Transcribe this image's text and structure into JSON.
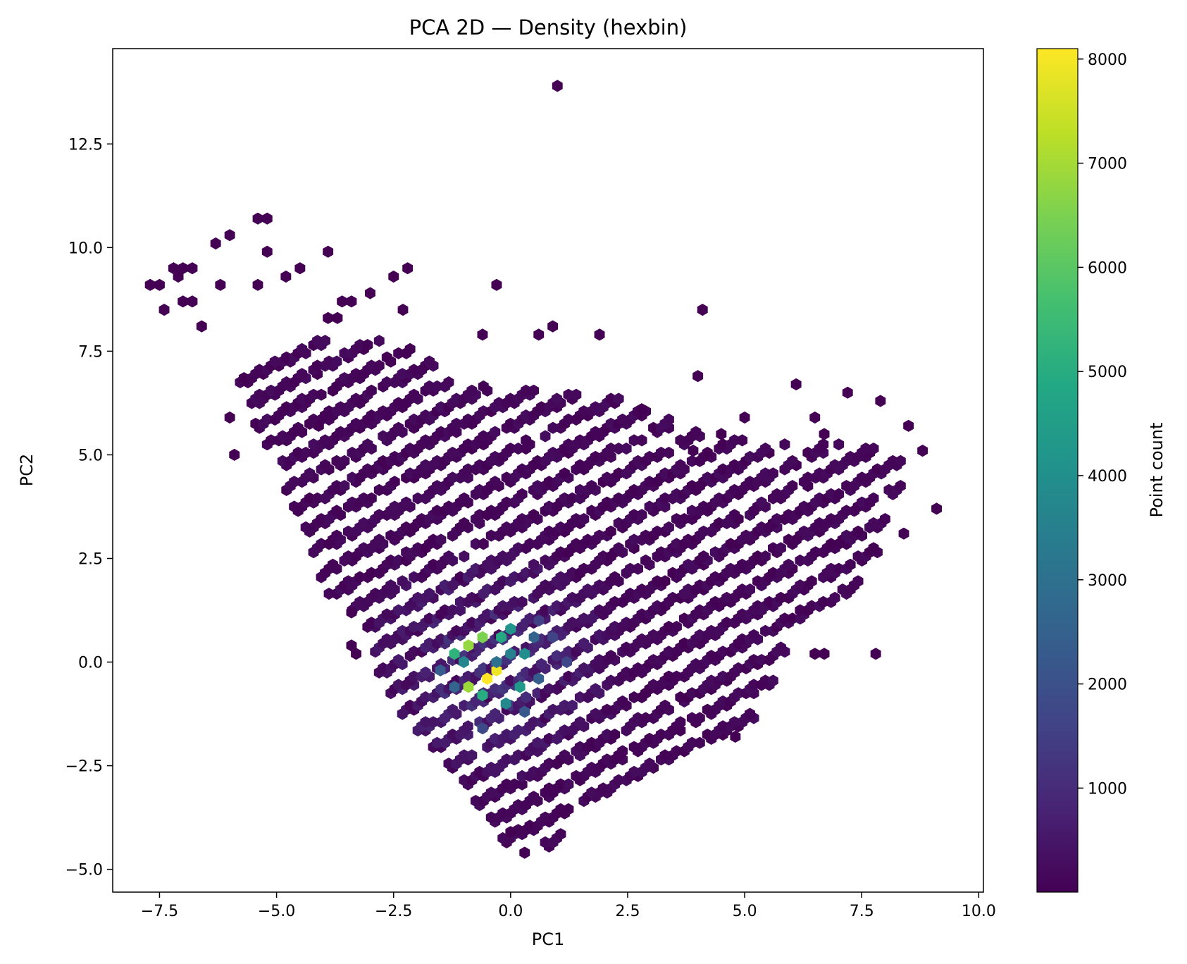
{
  "chart_data": {
    "type": "hexbin",
    "title": "PCA 2D — Density (hexbin)",
    "xlabel": "PC1",
    "ylabel": "PC2",
    "xlim": [
      -8.5,
      10.1
    ],
    "ylim": [
      -5.55,
      14.8
    ],
    "xticks": [
      -7.5,
      -5.0,
      -2.5,
      0.0,
      2.5,
      5.0,
      7.5,
      10.0
    ],
    "xtick_labels": [
      "−7.5",
      "−5.0",
      "−2.5",
      "0.0",
      "2.5",
      "5.0",
      "7.5",
      "10.0"
    ],
    "yticks": [
      -5.0,
      -2.5,
      0.0,
      2.5,
      5.0,
      7.5,
      10.0,
      12.5
    ],
    "ytick_labels": [
      "−5.0",
      "−2.5",
      "0.0",
      "2.5",
      "5.0",
      "7.5",
      "10.0",
      "12.5"
    ],
    "colorbar": {
      "label": "Point count",
      "colormap": "viridis",
      "range": [
        1,
        8100
      ],
      "ticks": [
        1000,
        2000,
        3000,
        4000,
        5000,
        6000,
        7000,
        8000
      ],
      "tick_labels": [
        "1000",
        "2000",
        "3000",
        "4000",
        "5000",
        "6000",
        "7000",
        "8000"
      ]
    },
    "grid": false,
    "bins": [
      {
        "x": 1.0,
        "y": 13.9,
        "count": 1
      },
      {
        "x": -5.4,
        "y": 10.7,
        "count": 1
      },
      {
        "x": -5.2,
        "y": 10.7,
        "count": 1
      },
      {
        "x": -6.0,
        "y": 10.3,
        "count": 1
      },
      {
        "x": -6.3,
        "y": 10.1,
        "count": 1
      },
      {
        "x": -5.2,
        "y": 9.9,
        "count": 1
      },
      {
        "x": -3.9,
        "y": 9.9,
        "count": 1
      },
      {
        "x": -7.2,
        "y": 9.5,
        "count": 1
      },
      {
        "x": -7.0,
        "y": 9.5,
        "count": 1
      },
      {
        "x": -6.8,
        "y": 9.5,
        "count": 1
      },
      {
        "x": -4.5,
        "y": 9.5,
        "count": 1
      },
      {
        "x": -2.2,
        "y": 9.5,
        "count": 1
      },
      {
        "x": -7.1,
        "y": 9.3,
        "count": 1
      },
      {
        "x": -4.8,
        "y": 9.3,
        "count": 1
      },
      {
        "x": -2.5,
        "y": 9.3,
        "count": 1
      },
      {
        "x": -7.7,
        "y": 9.1,
        "count": 1
      },
      {
        "x": -7.5,
        "y": 9.1,
        "count": 1
      },
      {
        "x": -6.2,
        "y": 9.1,
        "count": 1
      },
      {
        "x": -5.4,
        "y": 9.1,
        "count": 1
      },
      {
        "x": -0.3,
        "y": 9.1,
        "count": 1
      },
      {
        "x": -3.0,
        "y": 8.9,
        "count": 1
      },
      {
        "x": -7.0,
        "y": 8.7,
        "count": 1
      },
      {
        "x": -6.8,
        "y": 8.7,
        "count": 1
      },
      {
        "x": -3.6,
        "y": 8.7,
        "count": 1
      },
      {
        "x": -3.4,
        "y": 8.7,
        "count": 1
      },
      {
        "x": -7.4,
        "y": 8.5,
        "count": 1
      },
      {
        "x": -2.3,
        "y": 8.5,
        "count": 1
      },
      {
        "x": 4.1,
        "y": 8.5,
        "count": 1
      },
      {
        "x": -3.9,
        "y": 8.3,
        "count": 1
      },
      {
        "x": -3.7,
        "y": 8.3,
        "count": 1
      },
      {
        "x": -6.6,
        "y": 8.1,
        "count": 1
      },
      {
        "x": 0.9,
        "y": 8.1,
        "count": 1
      },
      {
        "x": -0.6,
        "y": 7.9,
        "count": 1
      },
      {
        "x": 0.6,
        "y": 7.9,
        "count": 1
      },
      {
        "x": 1.9,
        "y": 7.9,
        "count": 1
      },
      {
        "x": 4.0,
        "y": 6.9,
        "count": 1
      },
      {
        "x": 6.1,
        "y": 6.7,
        "count": 1
      },
      {
        "x": 7.2,
        "y": 6.5,
        "count": 1
      },
      {
        "x": 7.9,
        "y": 6.3,
        "count": 1
      },
      {
        "x": 2.8,
        "y": 6.1,
        "count": 1
      },
      {
        "x": 5.0,
        "y": 5.9,
        "count": 1
      },
      {
        "x": 6.5,
        "y": 5.9,
        "count": 1
      },
      {
        "x": 8.5,
        "y": 5.7,
        "count": 1
      },
      {
        "x": 3.9,
        "y": 5.1,
        "count": 1
      },
      {
        "x": 4.5,
        "y": 5.5,
        "count": 1
      },
      {
        "x": 6.7,
        "y": 5.5,
        "count": 1
      },
      {
        "x": 8.8,
        "y": 5.1,
        "count": 1
      },
      {
        "x": 9.1,
        "y": 3.7,
        "count": 1
      },
      {
        "x": 8.4,
        "y": 3.1,
        "count": 1
      },
      {
        "x": 7.8,
        "y": 0.2,
        "count": 1
      },
      {
        "x": 6.5,
        "y": 0.2,
        "count": 1
      },
      {
        "x": 6.7,
        "y": 0.2,
        "count": 1
      },
      {
        "x": 4.8,
        "y": -1.8,
        "count": 1
      },
      {
        "x": 0.3,
        "y": -4.6,
        "count": 1
      },
      {
        "x": 0.0,
        "y": -4.1,
        "count": 1
      },
      {
        "x": -3.4,
        "y": 0.4,
        "count": 1
      },
      {
        "x": -3.3,
        "y": 0.2,
        "count": 1
      },
      {
        "x": -3.4,
        "y": 1.2,
        "count": 1
      },
      {
        "x": -5.9,
        "y": 5.0,
        "count": 1
      },
      {
        "x": -6.0,
        "y": 5.9,
        "count": 1
      },
      {
        "x": -4.1,
        "y": 5.7,
        "count": 1
      },
      {
        "x": -0.6,
        "y": 0.6,
        "count": 6500
      },
      {
        "x": -0.9,
        "y": 0.4,
        "count": 6800
      },
      {
        "x": -1.2,
        "y": 0.2,
        "count": 5200
      },
      {
        "x": -0.5,
        "y": -0.4,
        "count": 8100
      },
      {
        "x": -0.3,
        "y": -0.2,
        "count": 7900
      },
      {
        "x": -0.9,
        "y": -0.6,
        "count": 6900
      },
      {
        "x": -0.6,
        "y": -0.8,
        "count": 5000
      },
      {
        "x": 0.0,
        "y": 0.8,
        "count": 4200
      },
      {
        "x": -0.2,
        "y": 0.6,
        "count": 4900
      },
      {
        "x": 0.3,
        "y": 0.2,
        "count": 4000
      },
      {
        "x": 0.0,
        "y": 0.2,
        "count": 3500
      },
      {
        "x": 0.2,
        "y": -0.6,
        "count": 4300
      },
      {
        "x": -0.1,
        "y": -1.0,
        "count": 3800
      },
      {
        "x": -1.0,
        "y": 0.0,
        "count": 3700
      },
      {
        "x": -0.3,
        "y": 0.0,
        "count": 3000
      },
      {
        "x": 0.6,
        "y": -0.4,
        "count": 2400
      },
      {
        "x": 0.5,
        "y": 0.6,
        "count": 2600
      },
      {
        "x": -1.2,
        "y": -0.6,
        "count": 2600
      },
      {
        "x": -1.5,
        "y": -0.2,
        "count": 2300
      },
      {
        "x": 0.3,
        "y": -1.2,
        "count": 2200
      },
      {
        "x": -0.6,
        "y": -1.6,
        "count": 1800
      },
      {
        "x": 1.2,
        "y": 0.0,
        "count": 1700
      },
      {
        "x": 0.9,
        "y": 0.6,
        "count": 1600
      },
      {
        "x": 0.6,
        "y": 1.0,
        "count": 1500
      }
    ],
    "density_field": {
      "description_note": "",
      "bands_slope": 0.57,
      "band_spacing_pc2": 0.62,
      "edge_polygon": [
        [
          -5.9,
          7.0
        ],
        [
          -4.5,
          7.8
        ],
        [
          -2.4,
          7.8
        ],
        [
          -1.0,
          6.8
        ],
        [
          2.2,
          6.4
        ],
        [
          4.5,
          5.4
        ],
        [
          6.2,
          5.3
        ],
        [
          7.5,
          5.3
        ],
        [
          8.5,
          4.8
        ],
        [
          7.8,
          2.5
        ],
        [
          7.2,
          1.4
        ],
        [
          6.0,
          0.6
        ],
        [
          5.6,
          -0.5
        ],
        [
          5.2,
          -1.5
        ],
        [
          3.6,
          -2.2
        ],
        [
          2.6,
          -3.0
        ],
        [
          1.3,
          -3.8
        ],
        [
          0.9,
          -4.5
        ],
        [
          -0.1,
          -4.4
        ],
        [
          -1.3,
          -2.6
        ],
        [
          -2.0,
          -1.8
        ],
        [
          -2.8,
          -0.5
        ],
        [
          -3.0,
          0.8
        ],
        [
          -3.9,
          1.6
        ],
        [
          -4.4,
          3.0
        ],
        [
          -4.9,
          4.4
        ],
        [
          -5.4,
          5.6
        ]
      ]
    }
  }
}
